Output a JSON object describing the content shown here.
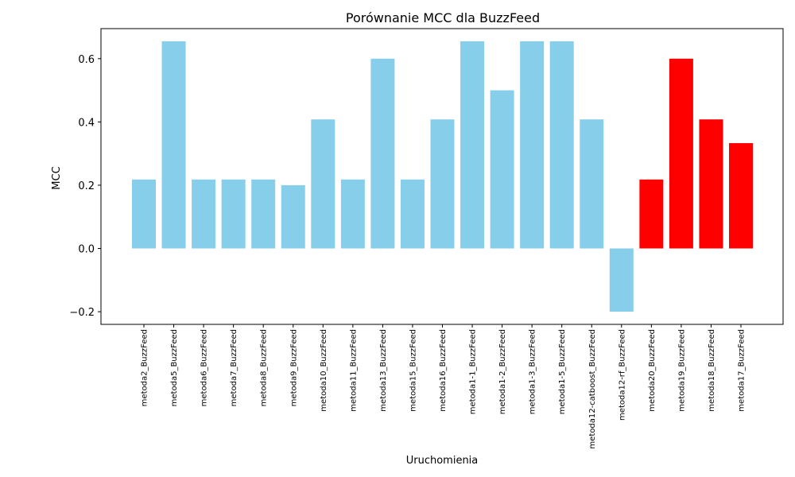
{
  "chart_data": {
    "type": "bar",
    "title": "Porównanie MCC dla BuzzFeed",
    "xlabel": "Uruchomienia",
    "ylabel": "MCC",
    "ylim": [
      -0.24,
      0.695
    ],
    "yticks": [
      -0.2,
      0.0,
      0.2,
      0.4,
      0.6
    ],
    "ytick_labels": [
      "−0.2",
      "0.0",
      "0.2",
      "0.4",
      "0.6"
    ],
    "grid": false,
    "colors": {
      "default": "#87CEEB",
      "highlight": "#FF0000"
    },
    "categories": [
      "metoda2_BuzzFeed",
      "metoda5_BuzzFeed",
      "metoda6_BuzzFeed",
      "metoda7_BuzzFeed",
      "metoda8_BuzzFeed",
      "metoda9_BuzzFeed",
      "metoda10_BuzzFeed",
      "metoda11_BuzzFeed",
      "metoda13_BuzzFeed",
      "metoda15_BuzzFeed",
      "metoda16_BuzzFeed",
      "metoda1-1_BuzzFeed",
      "metoda1-2_BuzzFeed",
      "metoda1-3_BuzzFeed",
      "metoda1-5_BuzzFeed",
      "metoda12-catboost_BuzzFeed",
      "metoda12-rf_BuzzFeed",
      "metoda20_BuzzFeed",
      "metoda19_BuzzFeed",
      "metoda18_BuzzFeed",
      "metoda17_BuzzFeed"
    ],
    "values": [
      0.218,
      0.655,
      0.218,
      0.218,
      0.218,
      0.2,
      0.408,
      0.218,
      0.6,
      0.218,
      0.408,
      0.655,
      0.5,
      0.655,
      0.655,
      0.408,
      -0.2,
      0.218,
      0.6,
      0.408,
      0.333
    ],
    "bar_colors": [
      "#87CEEB",
      "#87CEEB",
      "#87CEEB",
      "#87CEEB",
      "#87CEEB",
      "#87CEEB",
      "#87CEEB",
      "#87CEEB",
      "#87CEEB",
      "#87CEEB",
      "#87CEEB",
      "#87CEEB",
      "#87CEEB",
      "#87CEEB",
      "#87CEEB",
      "#87CEEB",
      "#87CEEB",
      "#FF0000",
      "#FF0000",
      "#FF0000",
      "#FF0000"
    ]
  }
}
